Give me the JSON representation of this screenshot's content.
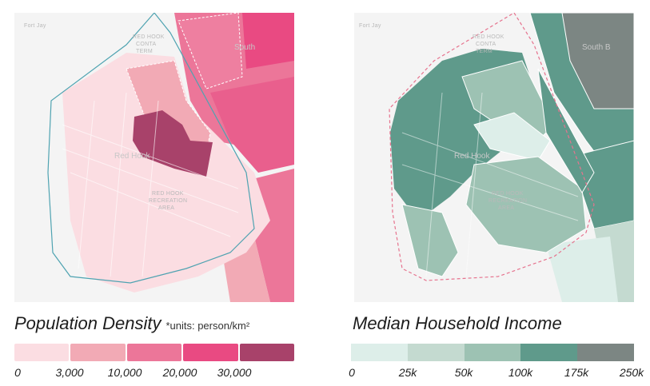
{
  "left_panel": {
    "title": "Population Density",
    "units": "*units: person/km²",
    "map_labels": {
      "fort_jay": "Fort Jay",
      "red_hook_c1": "RED HOOK",
      "red_hook_c2": "CONTA",
      "red_hook_c3": "TERM",
      "south": "South",
      "red_hook": "Red Hook",
      "rec1": "RED HOOK",
      "rec2": "RECREATION",
      "rec3": "AREA"
    },
    "legend": {
      "colors": [
        "#fbdde2",
        "#f2aab5",
        "#ec7699",
        "#e94a82",
        "#a8426a"
      ],
      "ticks": [
        "0",
        "3,000",
        "10,000",
        "20,000",
        "30,000"
      ]
    },
    "colors": {
      "base": "#f4f4f4",
      "boundary": "#4fa3b1"
    }
  },
  "right_panel": {
    "title": "Median Household Income",
    "map_labels": {
      "fort_jay": "Fort Jay",
      "red_hook_c1": "RED HOOK",
      "red_hook_c2": "CONTA",
      "red_hook_c3": "TERM",
      "south": "South B",
      "red_hook": "Red Hook",
      "rec1": "RED HOOK",
      "rec2": "RECREATION",
      "rec3": "AREA"
    },
    "legend": {
      "colors": [
        "#ddeee9",
        "#c4dad0",
        "#9dc2b3",
        "#5f9a8b",
        "#7c8683"
      ],
      "ticks": [
        "0",
        "25k",
        "50k",
        "100k",
        "175k",
        "250k"
      ]
    },
    "colors": {
      "base": "#f4f4f4",
      "boundary": "#e6738e"
    }
  }
}
